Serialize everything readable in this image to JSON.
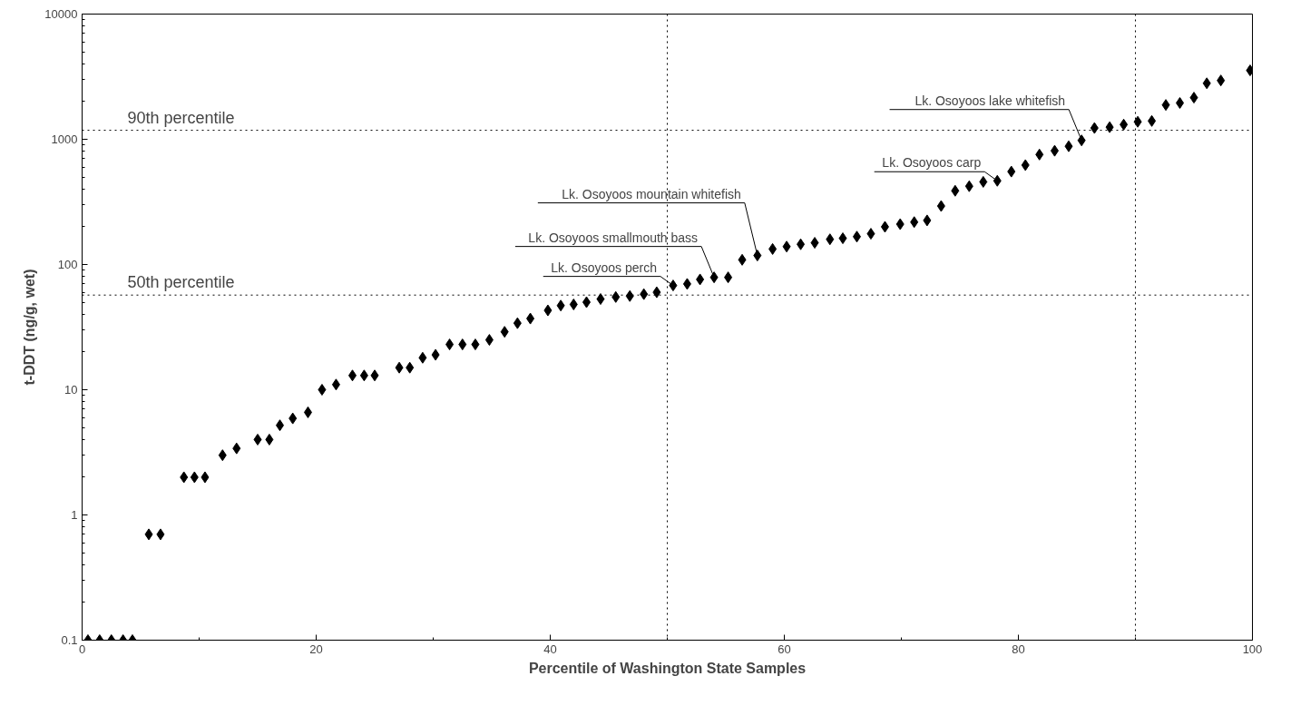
{
  "chart_data": {
    "type": "scatter",
    "xlabel": "Percentile of Washington State Samples",
    "ylabel": "t-DDT (ng/g, wet)",
    "log": "y",
    "marker": "diamond",
    "grid": false,
    "xlim": [
      0,
      100
    ],
    "xticks": [
      0,
      20,
      40,
      60,
      80,
      100
    ],
    "ylim": [
      0.1,
      10000
    ],
    "yticks": [
      {
        "value": 0.1,
        "label": "0.1"
      },
      1,
      10,
      100,
      1000,
      10000
    ],
    "series": [
      {
        "color": "#000000",
        "x": [
          0.5,
          1.5,
          2.5,
          3.5,
          4.3,
          5.7,
          6.7,
          8.7,
          9.6,
          10.5,
          12.0,
          13.2,
          15.0,
          16.0,
          16.9,
          18.0,
          19.3,
          20.5,
          21.7,
          23.1,
          24.1,
          25.0,
          27.1,
          28.0,
          29.1,
          30.2,
          31.4,
          32.5,
          33.6,
          34.8,
          36.1,
          37.2,
          38.3,
          39.8,
          40.9,
          42.0,
          43.1,
          44.3,
          45.6,
          46.8,
          48.0,
          49.1,
          50.5,
          51.7,
          52.8,
          54.0,
          55.2,
          56.4,
          57.7,
          59.0,
          60.2,
          61.4,
          62.6,
          63.9,
          65.0,
          66.2,
          67.4,
          68.6,
          69.9,
          71.1,
          72.2,
          73.4,
          74.6,
          75.8,
          77.0,
          78.2,
          79.4,
          80.6,
          81.8,
          83.1,
          84.3,
          85.4,
          86.5,
          87.8,
          89.0,
          90.2,
          91.4,
          92.6,
          93.8,
          95.0,
          96.1,
          97.3,
          99.8
        ],
        "values": [
          0.1,
          0.1,
          0.1,
          0.1,
          0.1,
          0.7,
          0.7,
          2,
          2,
          2,
          3,
          3.4,
          4,
          4,
          5.2,
          5.9,
          6.6,
          10,
          11,
          13,
          13,
          13,
          15,
          15,
          18,
          19,
          23,
          23,
          23,
          25,
          29,
          34,
          37,
          43,
          47,
          48,
          50,
          53,
          55,
          56,
          58,
          60,
          68,
          70,
          76,
          79,
          79,
          109,
          118,
          133,
          139,
          145,
          149,
          159,
          162,
          167,
          176,
          200,
          210,
          218,
          225,
          293,
          388,
          422,
          457,
          466,
          552,
          622,
          755,
          810,
          880,
          980,
          1230,
          1250,
          1310,
          1380,
          1400,
          1880,
          1950,
          2150,
          2800,
          2950,
          3550
        ]
      }
    ],
    "ref_lines": [
      {
        "axis": "y",
        "value": 1180,
        "label": "90th percentile",
        "color": "#000000",
        "line_style": "dotted"
      },
      {
        "axis": "y",
        "value": 57,
        "label": "50th percentile",
        "color": "#000000",
        "line_style": "dotted"
      },
      {
        "axis": "x",
        "value": 50,
        "color": "#000000",
        "line_style": "dotted"
      },
      {
        "axis": "x",
        "value": 90,
        "color": "#000000",
        "line_style": "dotted"
      }
    ],
    "annotations": [
      {
        "text": "Lk. Osoyoos perch",
        "x": 50.5,
        "y": 68
      },
      {
        "text": "Lk. Osoyoos smallmouth bass",
        "x": 54.0,
        "y": 79
      },
      {
        "text": "Lk. Osoyoos mountain whitefish",
        "x": 57.7,
        "y": 118
      },
      {
        "text": "Lk. Osoyoos carp",
        "x": 78.2,
        "y": 466
      },
      {
        "text": "Lk. Osoyoos lake whitefish",
        "x": 85.4,
        "y": 980
      }
    ]
  }
}
